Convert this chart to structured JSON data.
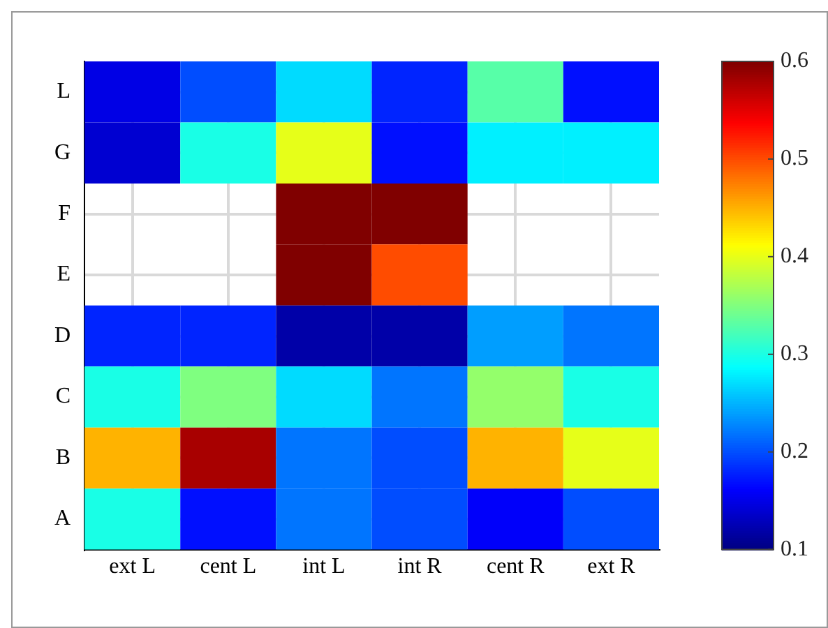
{
  "chart_data": {
    "type": "heatmap",
    "categories": [
      "ext L",
      "cent L",
      "int L",
      "int R",
      "cent R",
      "ext R"
    ],
    "y_categories": [
      "L",
      "G",
      "F",
      "E",
      "D",
      "C",
      "B",
      "A"
    ],
    "cells": [
      [
        0.15,
        0.2,
        0.27,
        0.18,
        0.33,
        0.17
      ],
      [
        0.14,
        0.3,
        0.4,
        0.17,
        0.28,
        0.28
      ],
      [
        null,
        null,
        0.6,
        0.6,
        null,
        null
      ],
      [
        null,
        null,
        0.6,
        0.5,
        null,
        null
      ],
      [
        0.18,
        0.18,
        0.12,
        0.12,
        0.24,
        0.22
      ],
      [
        0.3,
        0.35,
        0.27,
        0.22,
        0.36,
        0.3
      ],
      [
        0.45,
        0.58,
        0.22,
        0.2,
        0.45,
        0.4
      ],
      [
        0.3,
        0.17,
        0.22,
        0.2,
        0.16,
        0.2
      ]
    ],
    "clim": [
      0.1,
      0.6
    ],
    "cticks": [
      0.1,
      0.2,
      0.3,
      0.4,
      0.5,
      0.6
    ],
    "grid": true
  }
}
